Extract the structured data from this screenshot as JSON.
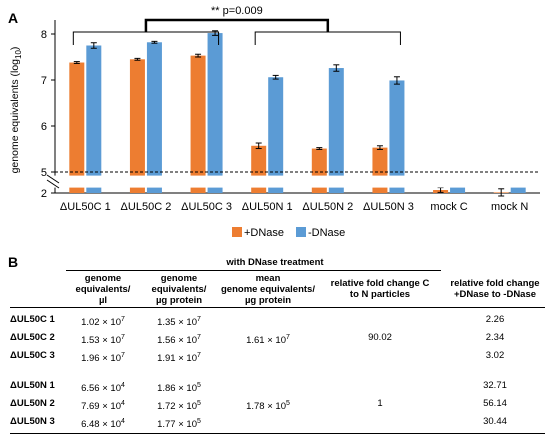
{
  "panel_a_letter": "A",
  "panel_b_letter": "B",
  "chart_data": {
    "type": "bar",
    "ylabel": "genome equivalents (log10)",
    "ylabel_main": "genome equivalents (log",
    "ylabel_sub": "10",
    "ylabel_end": ")",
    "ylim": [
      2,
      8.2
    ],
    "axis_break": [
      2.2,
      4.9
    ],
    "yticks": [
      {
        "v": 2,
        "label": "2"
      },
      {
        "v": 5,
        "label": "5"
      },
      {
        "v": 6,
        "label": "6"
      },
      {
        "v": 7,
        "label": "7"
      },
      {
        "v": 8,
        "label": "8"
      }
    ],
    "reference_line": 5,
    "categories": [
      "ΔUL50C 1",
      "ΔUL50C 2",
      "ΔUL50C 3",
      "ΔUL50N 1",
      "ΔUL50N 2",
      "ΔUL50N 3",
      "mock C",
      "mock N"
    ],
    "series": [
      {
        "name": "+DNase",
        "color": "#ed7d31",
        "values": [
          7.38,
          7.45,
          7.53,
          5.57,
          5.51,
          5.53,
          2.1,
          2.02
        ],
        "errors": [
          0.02,
          0.02,
          0.03,
          0.06,
          0.02,
          0.04,
          0.08,
          0.12
        ]
      },
      {
        "name": "-DNase",
        "color": "#5b9bd5",
        "values": [
          7.75,
          7.82,
          8.02,
          7.06,
          7.26,
          6.99,
          2.4,
          2.42
        ],
        "errors": [
          0.06,
          0.02,
          0.05,
          0.04,
          0.07,
          0.08,
          0.1,
          0.07
        ]
      }
    ],
    "annotation": "** p=0.009",
    "legend": [
      "+DNase",
      "-DNase"
    ],
    "legend_position": "bottom-center",
    "grid": false
  },
  "table": {
    "group_header": "with DNase treatment",
    "columns": [
      [
        "genome",
        "equivalents/",
        "µl"
      ],
      [
        "genome",
        "equivalents/",
        "µg protein"
      ],
      [
        "mean",
        "genome equivalents/",
        "µg protein"
      ],
      [
        "relative fold change C",
        "to N particles"
      ],
      [
        "relative fold change",
        "+DNase to -DNase"
      ]
    ],
    "rows": [
      {
        "label": "ΔUL50C 1",
        "ge_ul": "1.02 × 10",
        "ge_ul_exp": "7",
        "ge_ug": "1.35 × 10",
        "ge_ug_exp": "7",
        "mean": "",
        "mean_exp": "",
        "fold_cn": "",
        "fold_dnase": "2.26"
      },
      {
        "label": "ΔUL50C 2",
        "ge_ul": "1.53 × 10",
        "ge_ul_exp": "7",
        "ge_ug": "1.56 × 10",
        "ge_ug_exp": "7",
        "mean": "1.61 × 10",
        "mean_exp": "7",
        "fold_cn": "90.02",
        "fold_dnase": "2.34"
      },
      {
        "label": "ΔUL50C 3",
        "ge_ul": "1.96 × 10",
        "ge_ul_exp": "7",
        "ge_ug": "1.91 × 10",
        "ge_ug_exp": "7",
        "mean": "",
        "mean_exp": "",
        "fold_cn": "",
        "fold_dnase": "3.02"
      },
      {
        "label": "ΔUL50N 1",
        "ge_ul": "6.56 × 10",
        "ge_ul_exp": "4",
        "ge_ug": "1.86 × 10",
        "ge_ug_exp": "5",
        "mean": "",
        "mean_exp": "",
        "fold_cn": "",
        "fold_dnase": "32.71"
      },
      {
        "label": "ΔUL50N 2",
        "ge_ul": "7.69 × 10",
        "ge_ul_exp": "4",
        "ge_ug": "1.72 × 10",
        "ge_ug_exp": "5",
        "mean": "1.78 × 10",
        "mean_exp": "5",
        "fold_cn": "1",
        "fold_dnase": "56.14"
      },
      {
        "label": "ΔUL50N 3",
        "ge_ul": "6.48 × 10",
        "ge_ul_exp": "4",
        "ge_ug": "1.77 × 10",
        "ge_ug_exp": "5",
        "mean": "",
        "mean_exp": "",
        "fold_cn": "",
        "fold_dnase": "30.44"
      }
    ]
  }
}
